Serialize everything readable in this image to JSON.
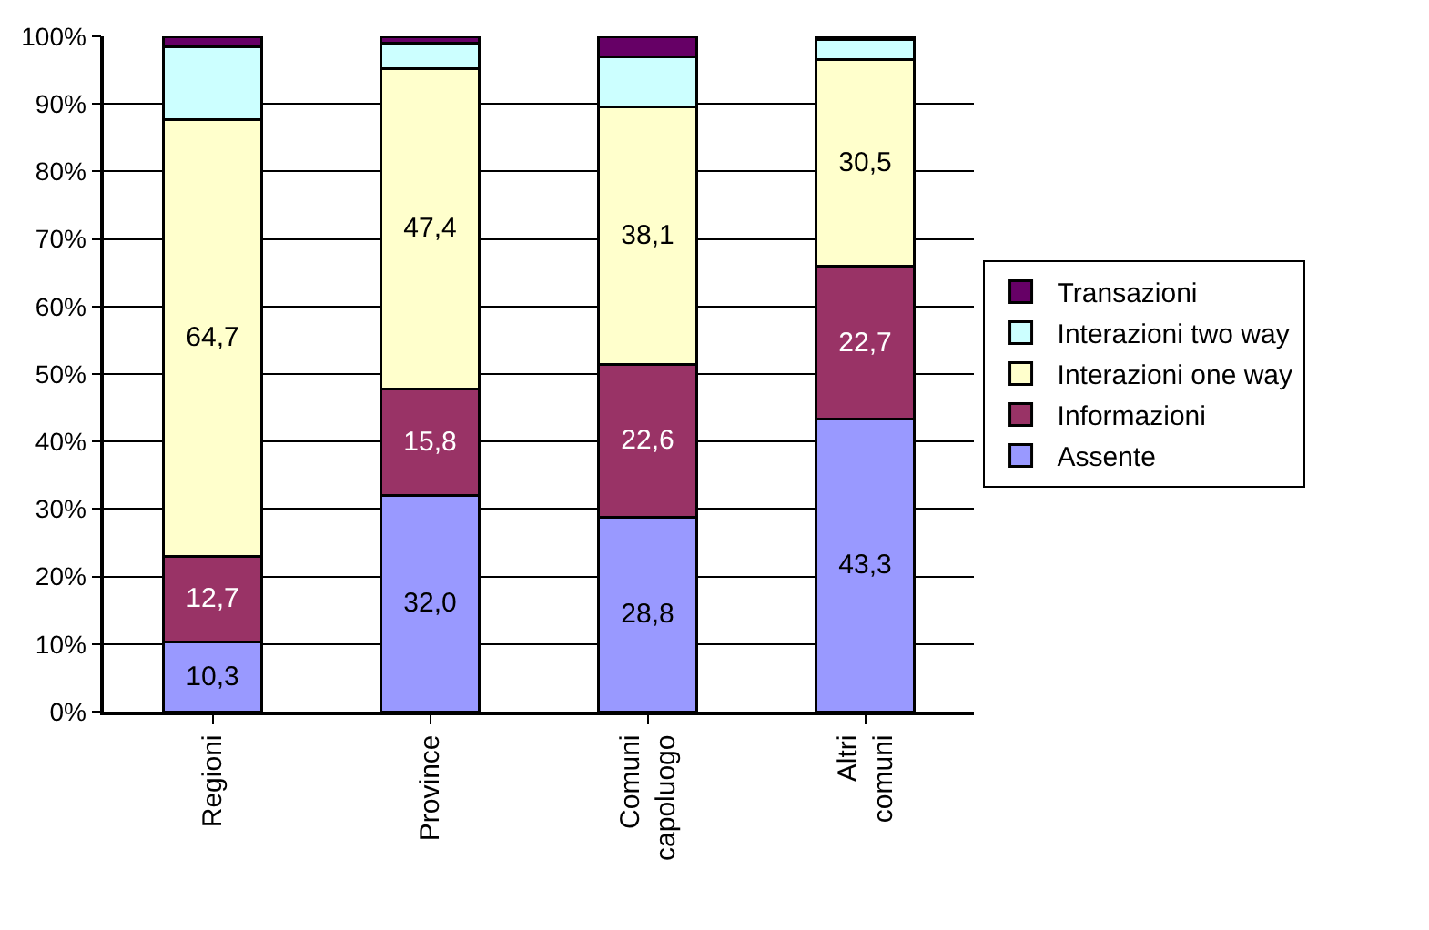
{
  "chart_data": {
    "type": "bar",
    "stacked": true,
    "categories": [
      "Regioni",
      "Province",
      "Comuni capoluogo",
      "Altri comuni"
    ],
    "series": [
      {
        "name": "Assente",
        "color": "#9999ff",
        "values": [
          10.3,
          32.0,
          28.8,
          43.3
        ],
        "value_labels": [
          "10,3",
          "32,0",
          "28,8",
          "43,3"
        ]
      },
      {
        "name": "Informazioni",
        "color": "#993366",
        "values": [
          12.7,
          15.8,
          22.6,
          22.7
        ],
        "value_labels": [
          "12,7",
          "15,8",
          "22,6",
          "22,7"
        ]
      },
      {
        "name": "Interazioni one way",
        "color": "#ffffcc",
        "values": [
          64.7,
          47.4,
          38.1,
          30.5
        ],
        "value_labels": [
          "64,7",
          "47,4",
          "38,1",
          "30,5"
        ]
      },
      {
        "name": "Interazioni two way",
        "color": "#ccffff",
        "values": [
          10.8,
          3.8,
          7.5,
          3.0
        ]
      },
      {
        "name": "Transazioni",
        "color": "#660066",
        "values": [
          1.5,
          1.0,
          3.0,
          0.5
        ]
      }
    ],
    "ylim": [
      0,
      100
    ],
    "yticks": [
      {
        "value": 0,
        "label": "0%"
      },
      {
        "value": 10,
        "label": "10%"
      },
      {
        "value": 20,
        "label": "20%"
      },
      {
        "value": 30,
        "label": "30%"
      },
      {
        "value": 40,
        "label": "40%"
      },
      {
        "value": 50,
        "label": "50%"
      },
      {
        "value": 60,
        "label": "60%"
      },
      {
        "value": 70,
        "label": "70%"
      },
      {
        "value": 80,
        "label": "80%"
      },
      {
        "value": 90,
        "label": "90%"
      },
      {
        "value": 100,
        "label": "100%"
      }
    ],
    "grid": "y",
    "legend": "right"
  }
}
